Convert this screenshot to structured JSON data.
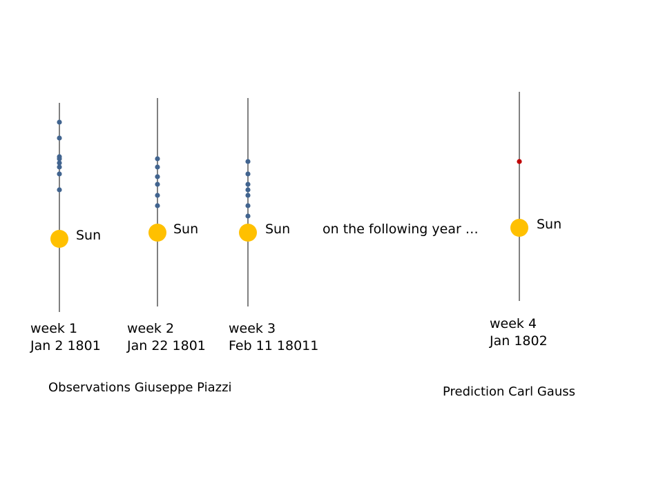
{
  "colors": {
    "axis": "#000000",
    "observation_point": "#41648f",
    "prediction_point": "#c00000",
    "sun": "#ffc000"
  },
  "axes": [
    {
      "id": "week1",
      "sun_label": "Sun",
      "week": "week 1",
      "date": "Jan 2 1801",
      "points": 8,
      "kind": "observation"
    },
    {
      "id": "week2",
      "sun_label": "Sun",
      "week": "week 2",
      "date": "Jan 22 1801",
      "points": 6,
      "kind": "observation"
    },
    {
      "id": "week3",
      "sun_label": "Sun",
      "week": "week 3",
      "date": "Feb 11 18011",
      "points": 7,
      "kind": "observation"
    },
    {
      "id": "week4",
      "sun_label": "Sun",
      "week": "week 4",
      "date": "Jan 1802",
      "points": 1,
      "kind": "prediction"
    }
  ],
  "following_year_text": "on the following year …",
  "captions": {
    "observations": "Observations Giuseppe Piazzi",
    "prediction": "Prediction Carl Gauss"
  }
}
